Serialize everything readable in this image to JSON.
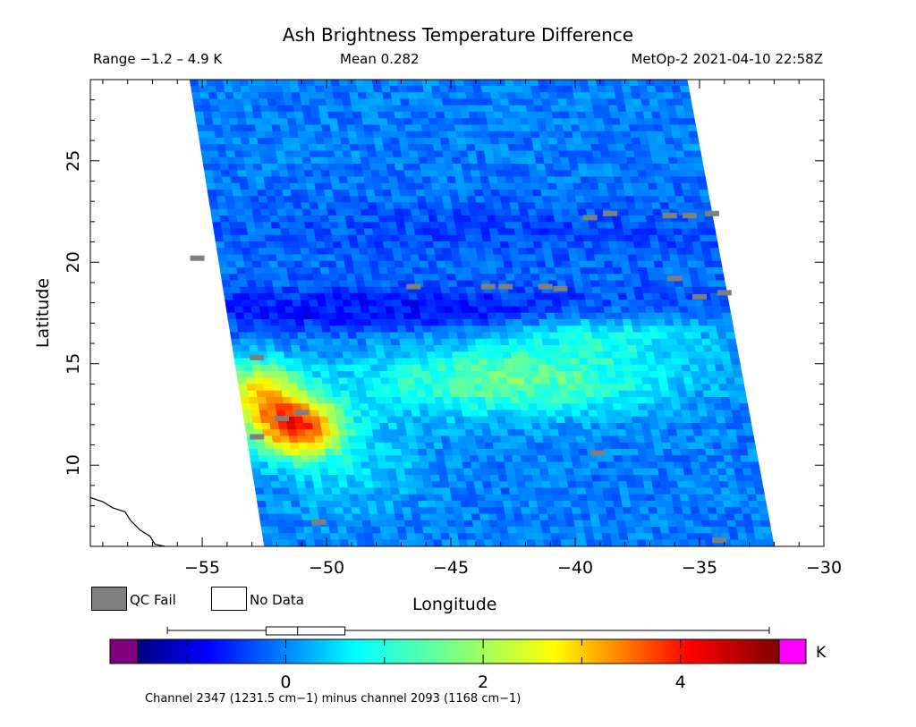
{
  "header": {
    "title": "Ash Brightness Temperature Difference",
    "range": "Range −1.2 – 4.9 K",
    "mean": "Mean 0.282",
    "satellite": "MetOp-2 2021-04-10 22:58Z"
  },
  "legend": {
    "qc_fail_label": "QC Fail",
    "no_data_label": "No Data",
    "qc_fail_color": "#7f7f7f",
    "no_data_color": "#ffffff"
  },
  "colorbar": {
    "unit": "K",
    "ticks": [
      0,
      2,
      4
    ],
    "minor_ticks": [
      -1,
      1,
      3
    ],
    "range": [
      -1.5,
      5.0
    ],
    "underflow_color": "#800080",
    "overflow_color": "#ff00ff",
    "boxplot": {
      "min": -1.2,
      "q1": -0.2,
      "median": 0.12,
      "q3": 0.6,
      "max": 4.9
    }
  },
  "footnote": "Channel 2347 (1231.5 cm−1) minus channel 2093 (1168 cm−1)",
  "chart_data": {
    "type": "heatmap",
    "title": "Ash Brightness Temperature Difference",
    "xlabel": "Longitude",
    "ylabel": "Latitude",
    "xlim": [
      -59.5,
      -30
    ],
    "ylim": [
      6,
      29
    ],
    "xticks": [
      -55,
      -50,
      -45,
      -40,
      -35,
      -30
    ],
    "yticks": [
      10,
      15,
      20,
      25
    ],
    "swath_corners": {
      "top_left": [
        -55.5,
        29
      ],
      "top_right": [
        -35.5,
        29
      ],
      "bottom_right": [
        -32,
        6
      ],
      "bottom_left": [
        -52.5,
        6
      ]
    },
    "value_unit": "K",
    "value_range": [
      -1.2,
      4.9
    ],
    "mean": 0.282,
    "background_value": 0.1,
    "features": [
      {
        "label": "ash plume",
        "lon": -51.3,
        "lat": 11.8,
        "peak": 4.5
      },
      {
        "label": "warm band",
        "lon": -43,
        "lat": 14,
        "peak": 1.6
      },
      {
        "label": "cold band",
        "lon": -46,
        "lat": 17.5,
        "peak": -0.7
      }
    ],
    "qc_fail_pixels": [
      [
        -55.2,
        20.2
      ],
      [
        -52.8,
        15.3
      ],
      [
        -51.8,
        12.3
      ],
      [
        -51.0,
        12.6
      ],
      [
        -52.8,
        11.4
      ],
      [
        -46.5,
        18.8
      ],
      [
        -43.5,
        18.8
      ],
      [
        -42.8,
        18.8
      ],
      [
        -41.2,
        18.8
      ],
      [
        -40.6,
        18.7
      ],
      [
        -39.4,
        22.2
      ],
      [
        -38.6,
        22.4
      ],
      [
        -36.2,
        22.3
      ],
      [
        -35.4,
        22.3
      ],
      [
        -34.5,
        22.4
      ],
      [
        -36.0,
        19.2
      ],
      [
        -35.0,
        18.3
      ],
      [
        -34.0,
        18.5
      ],
      [
        -39.1,
        10.6
      ],
      [
        -50.3,
        7.2
      ],
      [
        -34.2,
        6.3
      ]
    ],
    "coastline_points": [
      [
        -59.5,
        8.4
      ],
      [
        -59.0,
        8.2
      ],
      [
        -58.6,
        7.9
      ],
      [
        -58.1,
        7.7
      ],
      [
        -57.9,
        7.3
      ],
      [
        -57.5,
        6.8
      ],
      [
        -57.1,
        6.5
      ],
      [
        -56.9,
        6.1
      ],
      [
        -56.5,
        6.0
      ]
    ]
  }
}
